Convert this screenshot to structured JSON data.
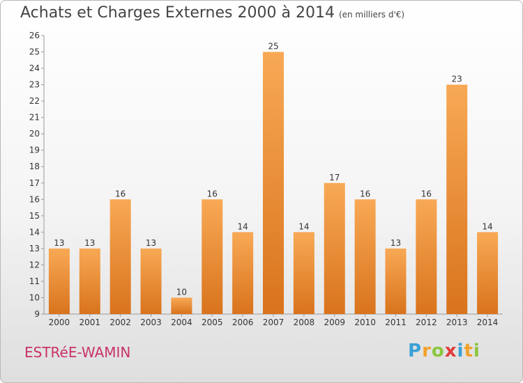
{
  "title": "Achats et Charges Externes 2000 à 2014",
  "subtitle": "(en milliers d'€)",
  "town": "ESTRéE-WAMIN",
  "logo": {
    "letters": [
      "P",
      "r",
      "o",
      "x",
      "i",
      "t",
      "i"
    ],
    "colors": [
      "#3aa0d8",
      "#f2a12a",
      "#8cc63f",
      "#e23b3b",
      "#3aa0d8",
      "#f2a12a",
      "#8cc63f"
    ]
  },
  "colors": {
    "bar_light": "#f8a955",
    "bar_dark": "#d9731d",
    "town": "#c8326a"
  },
  "chart_data": {
    "type": "bar",
    "categories": [
      "2000",
      "2001",
      "2002",
      "2003",
      "2004",
      "2005",
      "2006",
      "2007",
      "2008",
      "2009",
      "2010",
      "2011",
      "2012",
      "2013",
      "2014"
    ],
    "values": [
      13,
      13,
      16,
      13,
      10,
      16,
      14,
      25,
      14,
      17,
      16,
      13,
      16,
      23,
      14
    ],
    "ylim": [
      9,
      26
    ],
    "yticks": [
      9,
      10,
      11,
      12,
      13,
      14,
      15,
      16,
      17,
      18,
      19,
      20,
      21,
      22,
      23,
      24,
      25,
      26
    ],
    "grid": false,
    "data_labels": true
  }
}
